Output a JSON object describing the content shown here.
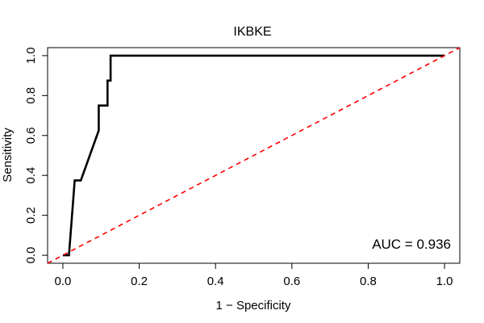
{
  "chart_data": {
    "type": "line",
    "title": "IKBKE",
    "xlabel": "1 − Specificity",
    "ylabel": "Sensitivity",
    "xlim": [
      -0.04,
      1.04
    ],
    "ylim": [
      -0.04,
      1.04
    ],
    "x_ticks": [
      0.0,
      0.2,
      0.4,
      0.6,
      0.8,
      1.0
    ],
    "x_tick_labels": [
      "0.0",
      "0.2",
      "0.4",
      "0.6",
      "0.8",
      "1.0"
    ],
    "y_ticks": [
      0.0,
      0.2,
      0.4,
      0.6,
      0.8,
      1.0
    ],
    "y_tick_labels": [
      "0.0",
      "0.2",
      "0.4",
      "0.6",
      "0.8",
      "1.0"
    ],
    "grid": false,
    "series": [
      {
        "color": "#000000",
        "style": "solid",
        "x": [
          0.0,
          0.016,
          0.031,
          0.047,
          0.094,
          0.094,
          0.117,
          0.117,
          0.125,
          0.125,
          1.0
        ],
        "y": [
          0.0,
          0.0,
          0.375,
          0.375,
          0.625,
          0.75,
          0.75,
          0.875,
          0.875,
          1.0,
          1.0
        ]
      },
      {
        "color": "#ff0000",
        "style": "dashed",
        "x": [
          -0.04,
          1.04
        ],
        "y": [
          -0.04,
          1.04
        ]
      }
    ],
    "annotations": [
      {
        "text": "AUC = 0.936",
        "position": "bottom-right"
      }
    ]
  }
}
